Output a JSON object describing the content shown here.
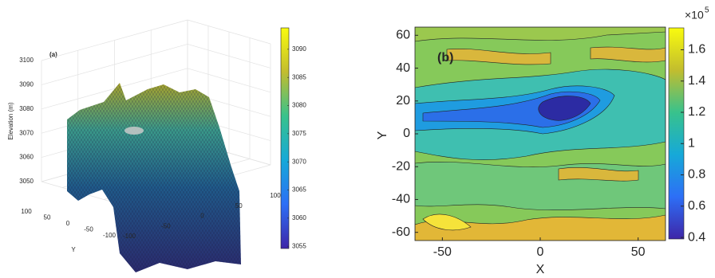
{
  "chart_data": [
    {
      "type": "surface3d",
      "panel_label": "(a)",
      "zlabel": "Elevation (m)",
      "xlabel": "X",
      "ylabel": "Y",
      "xlim": [
        -100,
        100
      ],
      "xticks": [
        -100,
        -50,
        0,
        50,
        100
      ],
      "ylim": [
        -100,
        100
      ],
      "yticks": [
        100,
        50,
        0,
        -50,
        -100
      ],
      "zlim": [
        3050,
        3100
      ],
      "zticks": [
        3050,
        3060,
        3070,
        3080,
        3090,
        3100
      ],
      "grid": true,
      "colorbar": {
        "clim": [
          3054.6,
          3093.8
        ],
        "ticks": [
          3055,
          3060,
          3065,
          3070,
          3075,
          3080,
          3085,
          3090
        ]
      }
    },
    {
      "type": "contour",
      "panel_label": "(b)",
      "xlabel": "X",
      "ylabel": "Y",
      "xlim": [
        -64,
        64
      ],
      "xticks": [
        -50,
        0,
        50
      ],
      "ylim": [
        -65,
        65
      ],
      "yticks": [
        -60,
        -40,
        -20,
        0,
        20,
        40,
        60
      ],
      "colorbar": {
        "clim": [
          0.39,
          1.74
        ],
        "ticks": [
          0.4,
          0.6,
          0.8,
          1,
          1.2,
          1.4,
          1.6
        ],
        "multiplier": "×10",
        "exponent": "5"
      }
    }
  ]
}
